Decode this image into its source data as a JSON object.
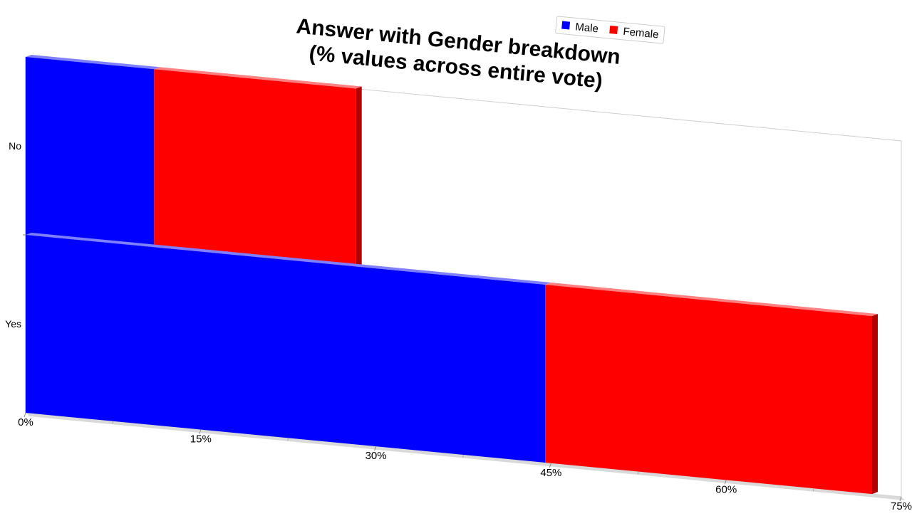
{
  "chart_data": {
    "type": "bar",
    "orientation": "horizontal",
    "stacked": true,
    "style": "3d-perspective",
    "title": "Answer with Gender breakdown\n(% values across entire vote)",
    "categories": [
      "No",
      "Yes"
    ],
    "series": [
      {
        "name": "Male",
        "values": [
          11,
          44.5
        ],
        "color": "#0000ff"
      },
      {
        "name": "Female",
        "values": [
          17.3,
          28
        ],
        "color": "#ff0000"
      }
    ],
    "x_ticks": [
      "0%",
      "15%",
      "30%",
      "45%",
      "60%",
      "75%"
    ],
    "xlim": [
      0,
      75
    ],
    "xlabel": "",
    "ylabel": "",
    "legend": {
      "position": "top-right",
      "entries": [
        "Male",
        "Female"
      ]
    },
    "grid": false
  }
}
